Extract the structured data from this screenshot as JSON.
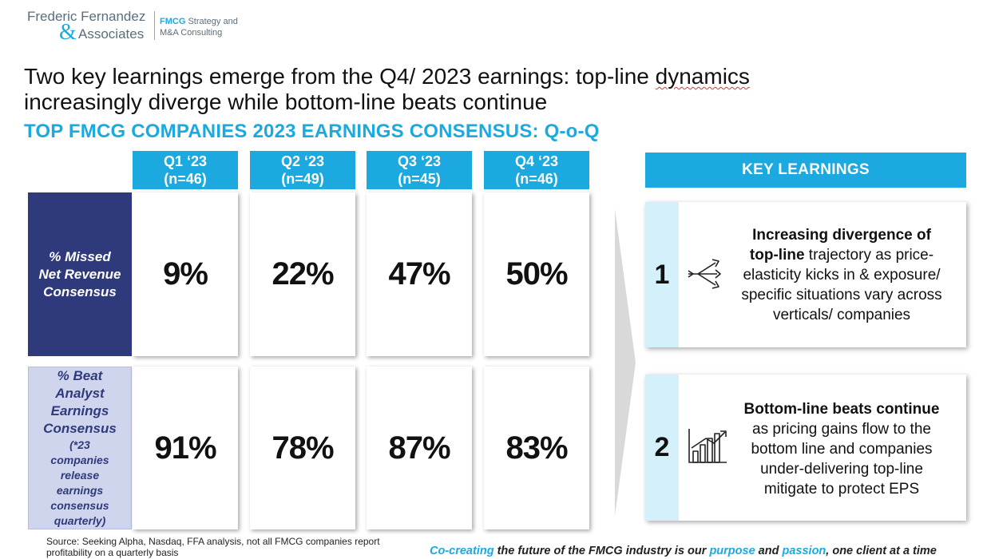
{
  "logo": {
    "name_line1": "Frederic Fernandez",
    "ampersand": "&",
    "name_line2": "Associates",
    "tag_brand": "FMCG",
    "tag_line1_rest": " Strategy and",
    "tag_line2": "M&A Consulting"
  },
  "title": {
    "part1": "Two key learnings emerge from the Q4/ 2023 earnings: top-line ",
    "squiggle_word": "dynamics",
    "part2": "increasingly diverge while bottom-line beats continue"
  },
  "subtitle": "TOP FMCG COMPANIES 2023 EARNINGS CONSENSUS: Q-o-Q",
  "quarters": [
    {
      "label": "Q1 ‘23",
      "n": "(n=46)"
    },
    {
      "label": "Q2 ‘23",
      "n": "(n=49)"
    },
    {
      "label": "Q3 ‘23",
      "n": "(n=45)"
    },
    {
      "label": "Q4 ‘23",
      "n": "(n=46)"
    }
  ],
  "rows": [
    {
      "label_lines": [
        "% Missed",
        "Net Revenue",
        "Consensus"
      ],
      "values": [
        "9%",
        "22%",
        "47%",
        "50%"
      ]
    },
    {
      "label_lines": [
        "% Beat",
        "Analyst",
        "Earnings",
        "Consensus"
      ],
      "note_lines": [
        "(*23",
        "companies",
        "release",
        "earnings",
        "consensus",
        "quarterly)"
      ],
      "values": [
        "91%",
        "78%",
        "87%",
        "83%"
      ]
    }
  ],
  "key_learnings": {
    "header": "KEY LEARNINGS",
    "items": [
      {
        "number": "1",
        "icon": "diverging-arrows-icon",
        "bold_1": "Increasing divergence of",
        "bold_2": "top-line",
        "rest_1": " trajectory as price-",
        "rest_2": "elasticity kicks in & exposure/",
        "rest_3": "specific situations vary across",
        "rest_4": "verticals/ companies"
      },
      {
        "number": "2",
        "icon": "growth-chart-icon",
        "bold_1": "Bottom-line beats continue",
        "rest_1": "as pricing gains flow to the",
        "rest_2": "bottom line and companies",
        "rest_3": "under-delivering top-line",
        "rest_4": "mitigate to protect EPS"
      }
    ]
  },
  "footer": {
    "source_line1": "Source: Seeking Alpha, Nasdaq, FFA analysis, not all FMCG companies report",
    "source_line2": "profitability on a quarterly basis",
    "tagline": {
      "hl1": "Co-creating",
      "t1": " the future of the FMCG industry is our ",
      "hl2": "purpose",
      "t2": " and ",
      "hl3": "passion",
      "t3": ", one client at a time"
    }
  },
  "colors": {
    "accent": "#1ba9e0",
    "navy": "#2f3a7c",
    "lavender": "#d0d5ee",
    "light_blue": "#d4f0fb"
  }
}
